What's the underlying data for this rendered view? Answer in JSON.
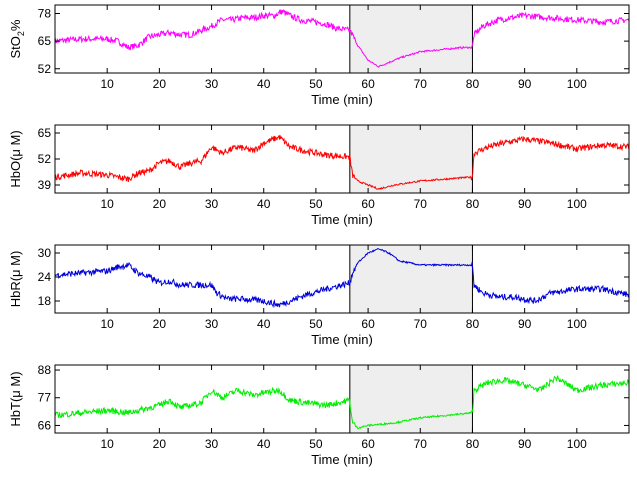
{
  "chart_data": [
    {
      "type": "line",
      "ylabel": "StO2%",
      "ylabel_main": "StO",
      "ylabel_sub": "2",
      "ylabel_tail": "%",
      "xlabel": "Time (min)",
      "xlim": [
        0,
        110
      ],
      "ylim": [
        50,
        82
      ],
      "yticks": [
        52,
        65,
        78
      ],
      "xticks": [
        10,
        20,
        30,
        40,
        50,
        60,
        70,
        80,
        90,
        100
      ],
      "shaded_x": [
        56.5,
        80
      ],
      "color": "#ff00ff",
      "series": [
        {
          "x": [
            0,
            5,
            8,
            10,
            12,
            14,
            16,
            18,
            20,
            22,
            24,
            26,
            28,
            30,
            32,
            34,
            36,
            38,
            40,
            42,
            43.5,
            45,
            47,
            50,
            52,
            54,
            56.5,
            57,
            58,
            60,
            62,
            64,
            66,
            70,
            74,
            78,
            80,
            80.3,
            82,
            85,
            90,
            95,
            100,
            105,
            110
          ],
          "y": [
            65,
            66,
            66,
            66,
            65,
            62,
            63,
            67,
            68,
            69,
            68,
            68,
            70,
            72,
            75,
            75,
            76,
            76,
            77,
            77,
            79,
            77,
            75,
            74,
            73,
            71,
            70,
            68,
            63,
            56,
            53,
            55,
            57,
            60,
            61,
            62,
            62,
            68,
            72,
            75,
            77,
            76,
            75,
            74,
            75
          ]
        }
      ]
    },
    {
      "type": "line",
      "ylabel": "HbO(μ M)",
      "xlabel": "Time (min)",
      "xlim": [
        0,
        110
      ],
      "ylim": [
        35,
        69
      ],
      "yticks": [
        39,
        52,
        65
      ],
      "xticks": [
        10,
        20,
        30,
        40,
        50,
        60,
        70,
        80,
        90,
        100
      ],
      "shaded_x": [
        56.5,
        80
      ],
      "color": "#ff0000",
      "series": [
        {
          "x": [
            0,
            5,
            10,
            14,
            16,
            18,
            20,
            22,
            24,
            26,
            28,
            30,
            32,
            35,
            38,
            40,
            43,
            45,
            48,
            52,
            56.5,
            57,
            58,
            60,
            62,
            65,
            70,
            75,
            80,
            80.3,
            83,
            86,
            90,
            95,
            100,
            105,
            110
          ],
          "y": [
            43,
            45,
            44,
            42,
            45,
            46,
            50,
            51,
            48,
            50,
            51,
            58,
            55,
            58,
            56,
            60,
            63,
            58,
            56,
            54,
            53,
            44,
            41,
            39,
            37,
            39,
            41,
            42,
            43,
            55,
            58,
            60,
            62,
            60,
            57,
            59,
            58
          ]
        }
      ]
    },
    {
      "type": "line",
      "ylabel": "HbR(μ M)",
      "xlabel": "Time (min)",
      "xlim": [
        0,
        110
      ],
      "ylim": [
        15,
        32
      ],
      "yticks": [
        18,
        24,
        30
      ],
      "xticks": [
        10,
        20,
        30,
        40,
        50,
        60,
        70,
        80,
        90,
        100
      ],
      "shaded_x": [
        56.5,
        80
      ],
      "color": "#0000dd",
      "series": [
        {
          "x": [
            0,
            5,
            10,
            12,
            14,
            16,
            18,
            20,
            22,
            24,
            26,
            28,
            30,
            31,
            33,
            36,
            40,
            43,
            45,
            48,
            52,
            56.5,
            57,
            58,
            60,
            62,
            64,
            66,
            70,
            75,
            80,
            80.3,
            82,
            85,
            88,
            92,
            95,
            100,
            105,
            110
          ],
          "y": [
            24.5,
            25,
            25.5,
            26.5,
            27,
            25,
            24,
            22.5,
            23,
            22,
            22,
            22,
            22,
            20,
            18.5,
            18.5,
            18,
            17,
            18,
            19.5,
            21,
            22.5,
            25,
            27.5,
            30,
            31,
            30,
            28,
            27,
            27,
            27,
            22,
            20,
            19,
            19,
            18,
            20,
            21,
            21,
            19.5
          ]
        }
      ]
    },
    {
      "type": "line",
      "ylabel": "HbT(μ M)",
      "xlabel": "Time (min)",
      "xlim": [
        0,
        110
      ],
      "ylim": [
        63,
        90
      ],
      "yticks": [
        66,
        77,
        88
      ],
      "xticks": [
        10,
        20,
        30,
        40,
        50,
        60,
        70,
        80,
        90,
        100
      ],
      "shaded_x": [
        56.5,
        80
      ],
      "color": "#00ee00",
      "series": [
        {
          "x": [
            0,
            5,
            10,
            14,
            16,
            18,
            20,
            22,
            24,
            26,
            28,
            30,
            32,
            35,
            38,
            40,
            43,
            45,
            48,
            52,
            56.5,
            57,
            58,
            60,
            65,
            70,
            75,
            80,
            80.3,
            83,
            86,
            90,
            93,
            96,
            100,
            105,
            110
          ],
          "y": [
            70,
            71,
            72,
            71,
            72,
            73,
            74,
            76,
            73,
            74,
            75,
            80,
            77,
            80,
            78,
            79,
            80,
            76,
            75,
            74,
            76,
            67,
            65,
            66,
            67,
            69,
            70,
            71,
            80,
            83,
            84,
            82,
            80,
            85,
            80,
            82,
            83
          ]
        }
      ]
    }
  ]
}
